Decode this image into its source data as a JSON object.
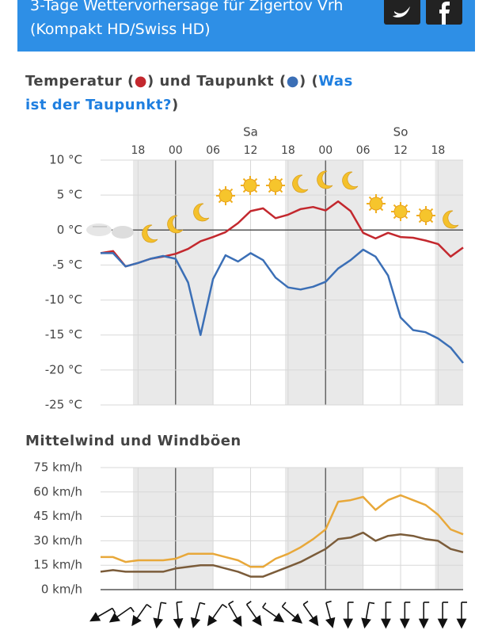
{
  "header": {
    "title": "3-Tage Wettervorhersage für Zigertov Vrh",
    "subtitle": "(Kompakt HD/Swiss HD)"
  },
  "chart_data": [
    {
      "type": "line",
      "title_parts": [
        "Temperatur (",
        "●",
        ") und Taupunkt (",
        "●",
        ") ("
      ],
      "title_link": "Was ist der Taupunkt?",
      "title_end": ")",
      "x": [
        0,
        2,
        4,
        6,
        8,
        10,
        12,
        14,
        16,
        18,
        20,
        22,
        24,
        26,
        28,
        30,
        32,
        34,
        36,
        38,
        40,
        42,
        44,
        46,
        48,
        50,
        52,
        54,
        56,
        58
      ],
      "xlim": [
        0,
        58
      ],
      "xticks": [
        {
          "value": 6,
          "label": "18"
        },
        {
          "value": 12,
          "label": "00"
        },
        {
          "value": 18,
          "label": "06"
        },
        {
          "value": 24,
          "label": "12"
        },
        {
          "value": 30,
          "label": "18"
        },
        {
          "value": 36,
          "label": "00"
        },
        {
          "value": 42,
          "label": "06"
        },
        {
          "value": 48,
          "label": "12"
        },
        {
          "value": 54,
          "label": "18"
        }
      ],
      "day_labels": [
        {
          "value": 24,
          "label": "Sa"
        },
        {
          "value": 48,
          "label": "So"
        }
      ],
      "night_bands": [
        [
          5.2,
          18
        ],
        [
          29.5,
          42
        ],
        [
          53.5,
          58
        ]
      ],
      "ylim": [
        -25,
        10
      ],
      "yticks": [
        {
          "value": 10,
          "label": "10 °C"
        },
        {
          "value": 5,
          "label": "5 °C"
        },
        {
          "value": 0,
          "label": "0 °C"
        },
        {
          "value": -5,
          "label": "-5 °C"
        },
        {
          "value": -10,
          "label": "-10 °C"
        },
        {
          "value": -15,
          "label": "-15 °C"
        },
        {
          "value": -20,
          "label": "-20 °C"
        },
        {
          "value": -25,
          "label": "-25 °C"
        }
      ],
      "grid": true,
      "series": [
        {
          "name": "Temperatur",
          "color": "#c3282e",
          "values": [
            -3.3,
            -3,
            -5.2,
            -4.7,
            -4.1,
            -3.8,
            -3.4,
            -2.7,
            -1.6,
            -1,
            -0.3,
            1,
            2.7,
            3.1,
            1.7,
            2.2,
            3,
            3.3,
            2.8,
            4.1,
            2.7,
            -0.4,
            -1.2,
            -0.4,
            -1,
            -1.1,
            -1.5,
            -2,
            -3.8,
            -2.5
          ]
        },
        {
          "name": "Taupunkt",
          "color": "#3b6fb6",
          "values": [
            -3.3,
            -3.3,
            -5.2,
            -4.7,
            -4.1,
            -3.7,
            -4.1,
            -7.5,
            -15,
            -7,
            -3.6,
            -4.5,
            -3.3,
            -4.3,
            -6.8,
            -8.2,
            -8.5,
            -8.1,
            -7.4,
            -5.5,
            -4.3,
            -2.8,
            -3.8,
            -6.5,
            -12.5,
            -14.3,
            -14.6,
            -15.5,
            -16.8,
            -19
          ]
        }
      ]
    },
    {
      "type": "line",
      "title": "Mittelwind und Windböen",
      "x": [
        0,
        2,
        4,
        6,
        8,
        10,
        12,
        14,
        16,
        18,
        20,
        22,
        24,
        26,
        28,
        30,
        32,
        34,
        36,
        38,
        40,
        42,
        44,
        46,
        48,
        50,
        52,
        54,
        56,
        58
      ],
      "xlim": [
        0,
        58
      ],
      "xticks": [
        {
          "value": 6,
          "label": "18"
        },
        {
          "value": 12,
          "label": "00"
        },
        {
          "value": 18,
          "label": "06"
        },
        {
          "value": 24,
          "label": "12"
        },
        {
          "value": 30,
          "label": "18"
        },
        {
          "value": 36,
          "label": "00"
        },
        {
          "value": 42,
          "label": "06"
        },
        {
          "value": 48,
          "label": "12"
        },
        {
          "value": 54,
          "label": "18"
        }
      ],
      "night_bands": [
        [
          5.2,
          18
        ],
        [
          29.5,
          42
        ],
        [
          53.5,
          58
        ]
      ],
      "ylim": [
        0,
        75
      ],
      "yticks": [
        {
          "value": 75,
          "label": "75 km/h"
        },
        {
          "value": 60,
          "label": "60 km/h"
        },
        {
          "value": 45,
          "label": "45 km/h"
        },
        {
          "value": 30,
          "label": "30 km/h"
        },
        {
          "value": 15,
          "label": "15 km/h"
        },
        {
          "value": 0,
          "label": "0 km/h"
        }
      ],
      "grid": true,
      "series": [
        {
          "name": "Windböen",
          "color": "#e8a83a",
          "values": [
            20,
            20,
            17,
            18,
            18,
            18,
            19,
            22,
            22,
            22,
            20,
            18,
            14,
            14,
            19,
            22,
            26,
            31,
            37,
            54,
            55,
            57,
            49,
            55,
            58,
            55,
            52,
            46,
            37,
            34
          ]
        },
        {
          "name": "Mittelwind",
          "color": "#7b5c3a",
          "values": [
            11,
            12,
            11,
            11,
            11,
            11,
            13,
            14,
            15,
            15,
            13,
            11,
            8,
            8,
            11,
            14,
            17,
            21,
            25,
            31,
            32,
            35,
            30,
            33,
            34,
            33,
            31,
            30,
            25,
            23
          ]
        }
      ],
      "wind_direction": [
        240,
        235,
        215,
        190,
        175,
        195,
        215,
        150,
        145,
        125,
        130,
        145,
        165,
        180,
        190,
        180,
        180,
        180,
        180,
        180
      ]
    }
  ]
}
